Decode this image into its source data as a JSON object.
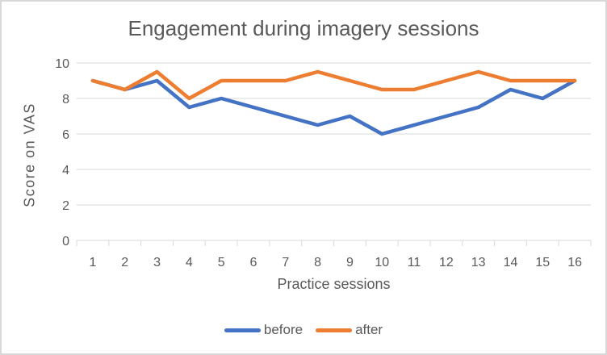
{
  "window": {
    "background_color": "#FFFFFF",
    "border_color": "#D9D9D9"
  },
  "chart_data": {
    "type": "line",
    "title": "Engagement during imagery sessions",
    "xlabel": "Practice sessions",
    "ylabel": "Score on VAS",
    "categories": [
      "1",
      "2",
      "3",
      "4",
      "5",
      "6",
      "7",
      "8",
      "9",
      "10",
      "11",
      "12",
      "13",
      "14",
      "15",
      "16"
    ],
    "series": [
      {
        "name": "before",
        "color": "#4472C4",
        "values": [
          9,
          8.5,
          9,
          7.5,
          8,
          7.5,
          7,
          6.5,
          7,
          6,
          6.5,
          7,
          7.5,
          8.5,
          8,
          9
        ]
      },
      {
        "name": "after",
        "color": "#ED7D31",
        "values": [
          9,
          8.5,
          9.5,
          8,
          9,
          9,
          9,
          9.5,
          9,
          8.5,
          8.5,
          9,
          9.5,
          9,
          9,
          9
        ]
      }
    ],
    "ylim": [
      0,
      10
    ],
    "yticks": [
      0,
      2,
      4,
      6,
      8,
      10
    ],
    "grid": "horizontal",
    "gridline_color": "#D9D9D9",
    "axis_color": "#D9D9D9",
    "text_color": "#595959",
    "legend_position": "bottom"
  }
}
